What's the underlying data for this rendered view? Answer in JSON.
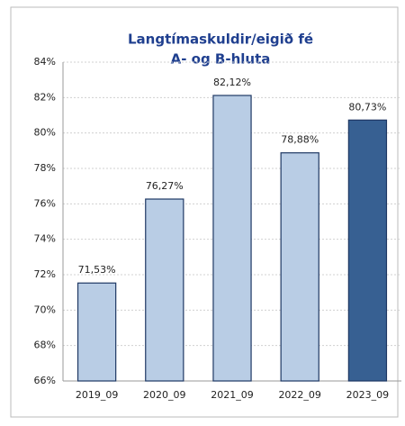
{
  "chart_data": {
    "type": "bar",
    "title": "Langtímaskuldir/eigið fé",
    "subtitle": "A- og B-hluta",
    "categories": [
      "2019_09",
      "2020_09",
      "2021_09",
      "2022_09",
      "2023_09"
    ],
    "values": [
      71.53,
      76.27,
      82.12,
      78.88,
      80.73
    ],
    "value_labels": [
      "71,53%",
      "76,27%",
      "82,12%",
      "78,88%",
      "80,73%"
    ],
    "colors": [
      "#b9cde5",
      "#b9cde5",
      "#b9cde5",
      "#b9cde5",
      "#376092"
    ],
    "ylim": [
      66,
      84
    ],
    "yticks": [
      {
        "value": 66,
        "label": "66%"
      },
      {
        "value": 68,
        "label": "68%"
      },
      {
        "value": 70,
        "label": "70%"
      },
      {
        "value": 72,
        "label": "72%"
      },
      {
        "value": 74,
        "label": "74%"
      },
      {
        "value": 76,
        "label": "76%"
      },
      {
        "value": 78,
        "label": "78%"
      },
      {
        "value": 80,
        "label": "80%"
      },
      {
        "value": 82,
        "label": "82%"
      },
      {
        "value": 84,
        "label": "84%"
      }
    ],
    "grid": true
  }
}
